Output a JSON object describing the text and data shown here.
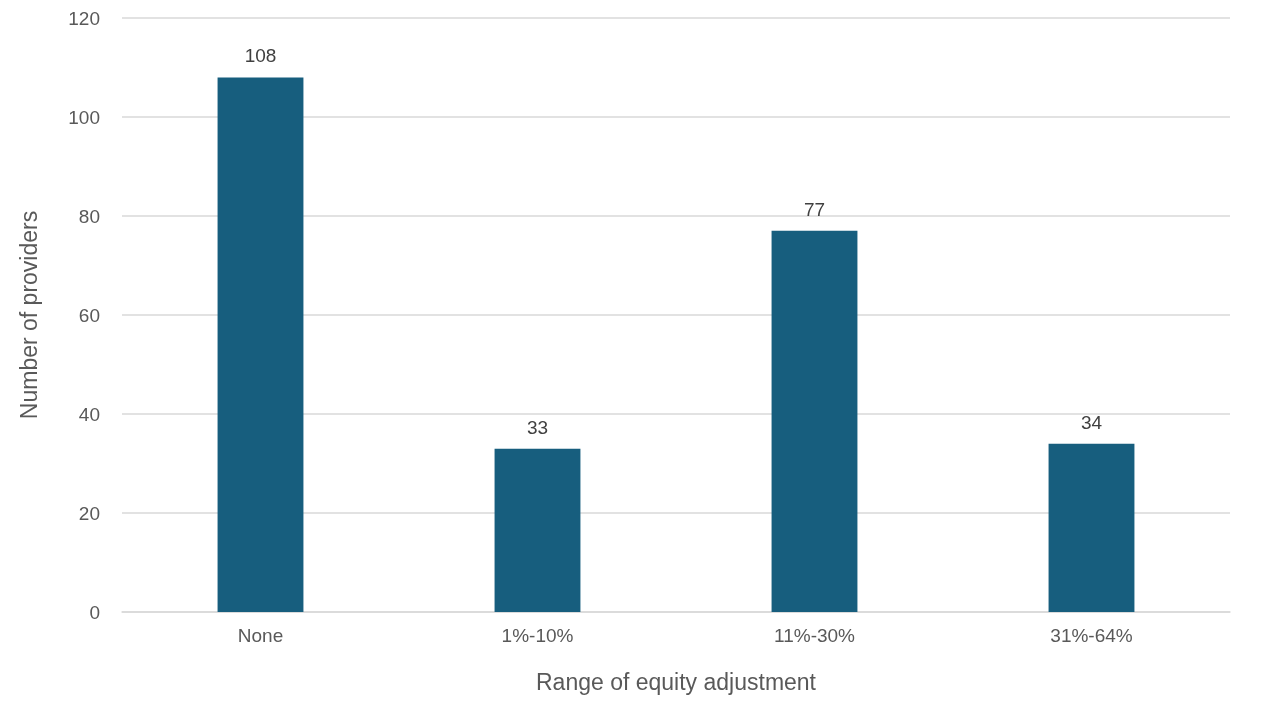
{
  "chart_data": {
    "type": "bar",
    "xlabel": "Range of equity adjustment",
    "ylabel": "Number of providers",
    "categories": [
      "None",
      "1%-10%",
      "11%-30%",
      "31%-64%"
    ],
    "values": [
      108,
      33,
      77,
      34
    ],
    "color": "#175e7e",
    "ylim": [
      0,
      120
    ],
    "yticks": [
      0,
      20,
      40,
      60,
      80,
      100,
      120
    ],
    "grid": "y",
    "data_labels": true
  }
}
